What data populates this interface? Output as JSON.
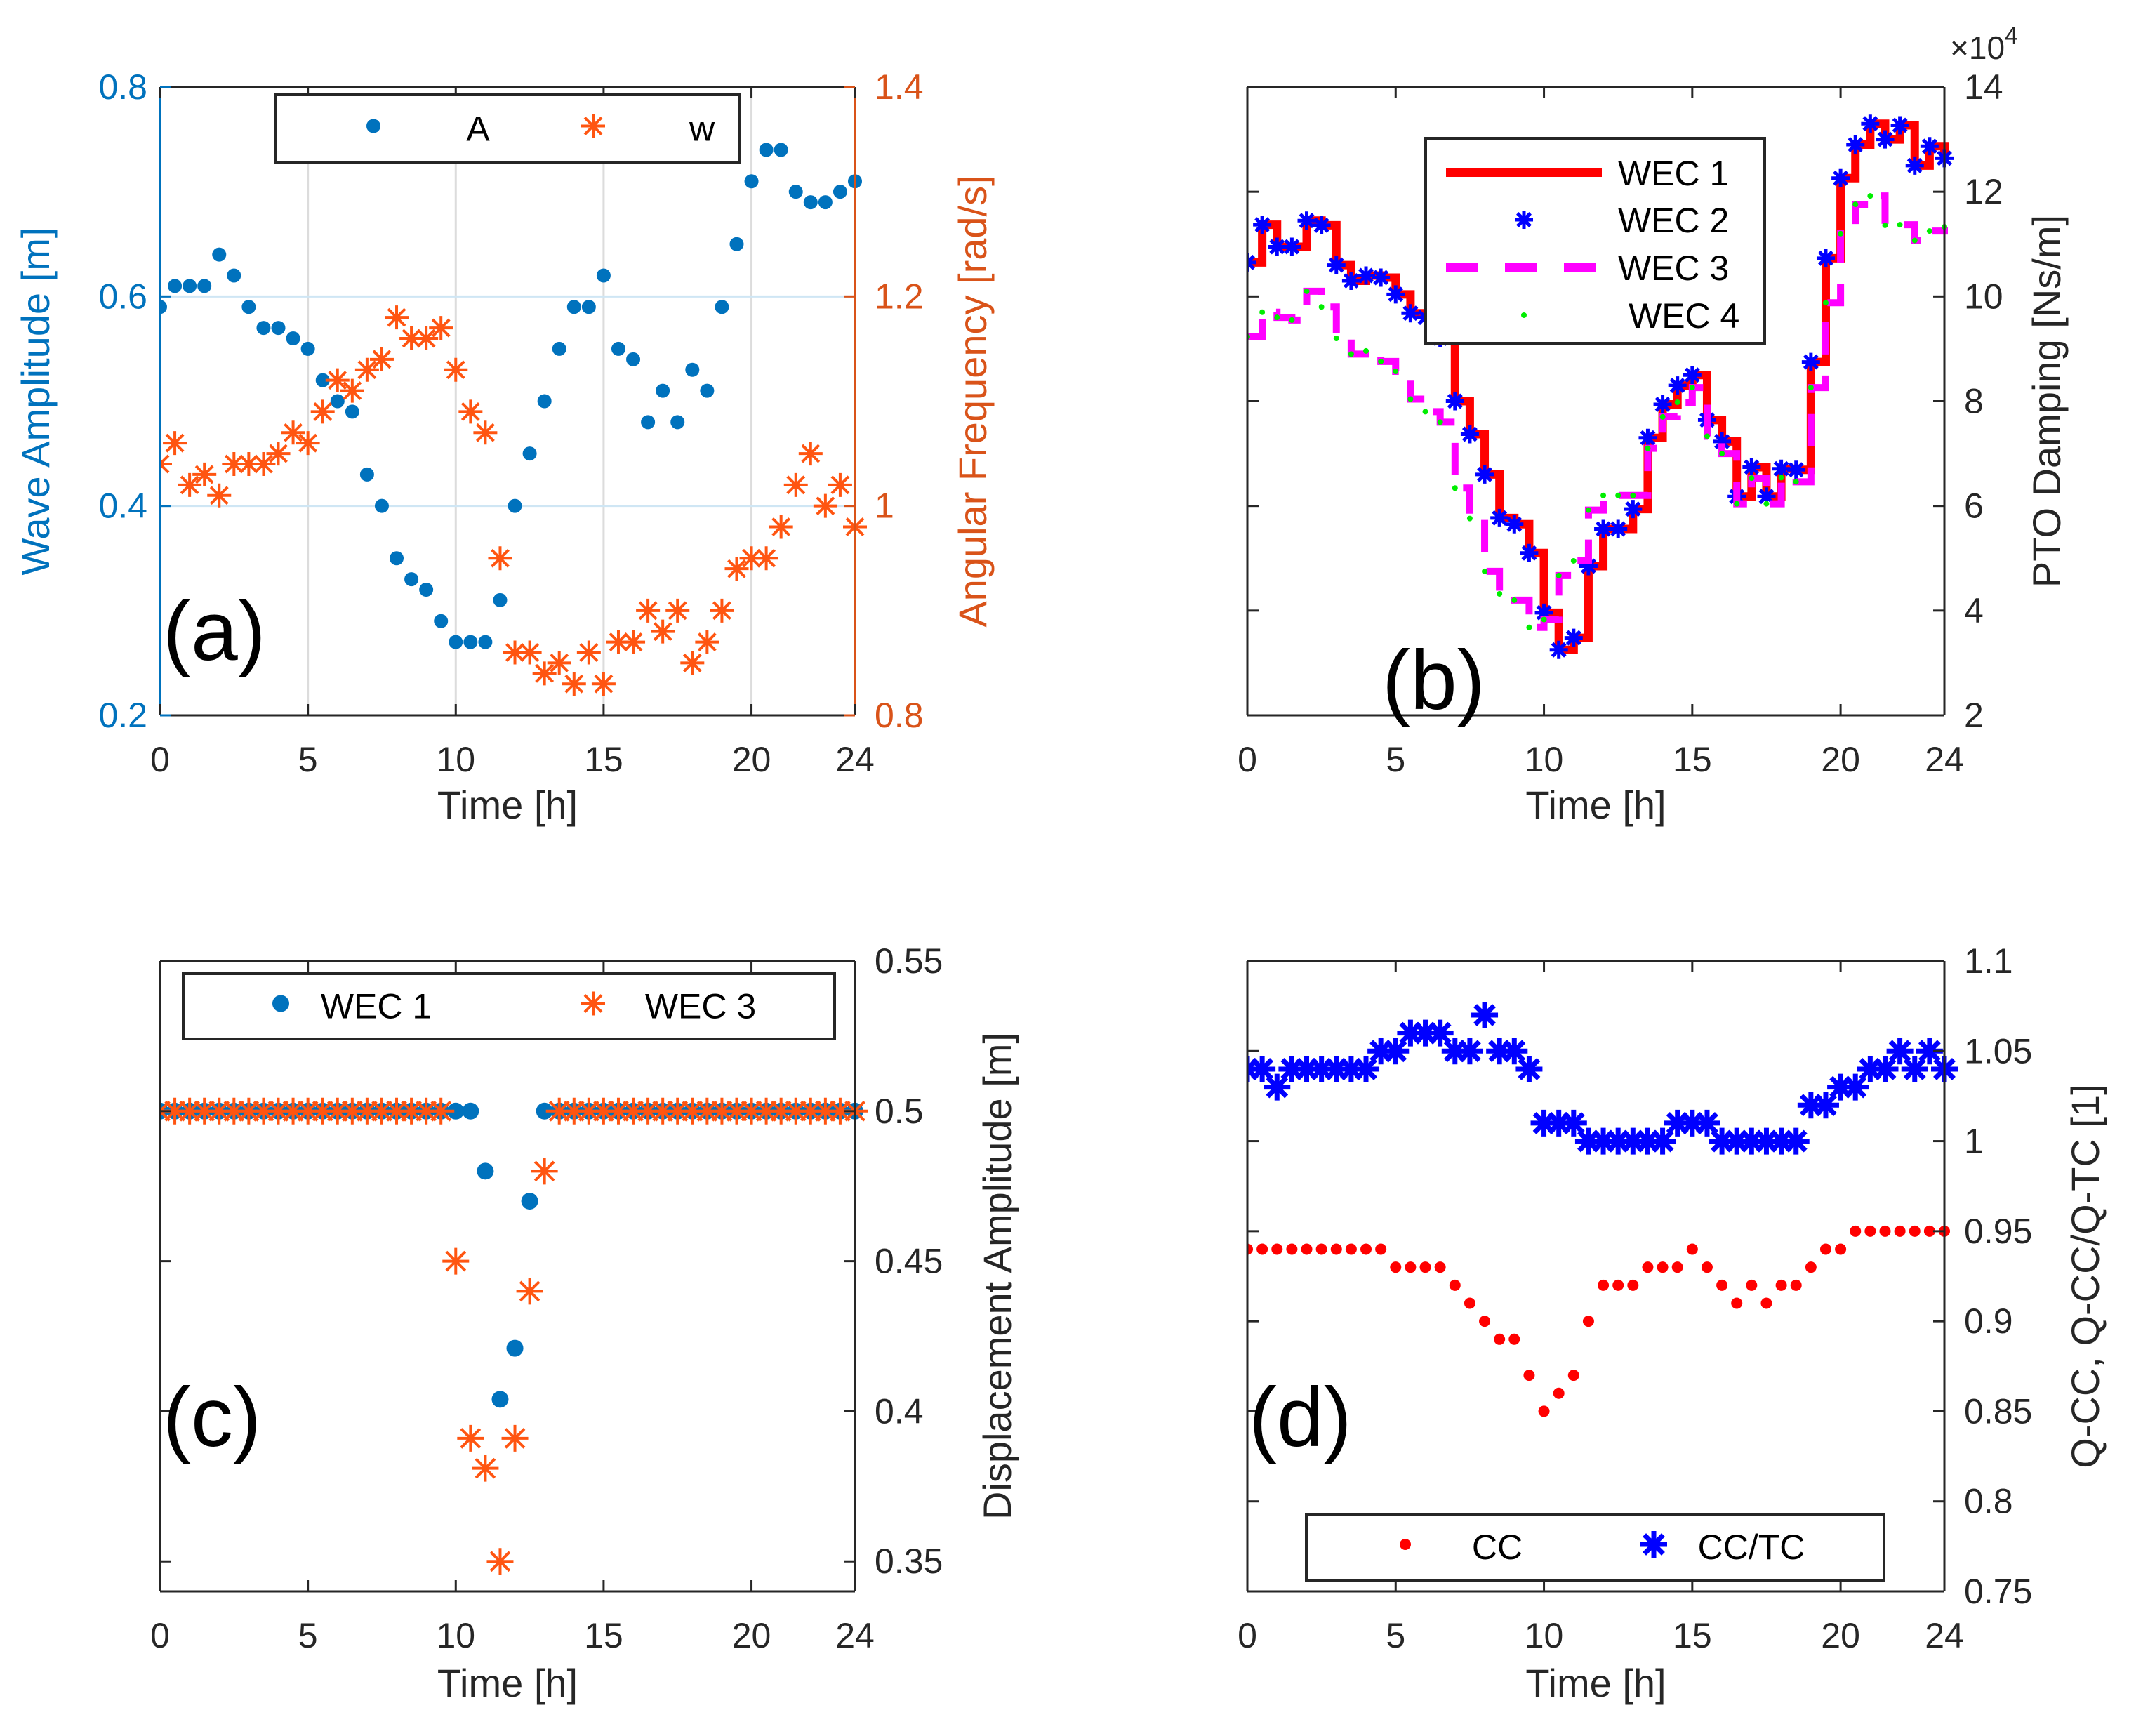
{
  "chart_data": [
    {
      "panel_label": "(a)",
      "type": "scatter",
      "xlabel": "Time [h]",
      "ylabel": "Wave Amplitude [m]",
      "y2label": "Angular Frequency [rad/s]",
      "xlim": [
        0,
        23.5
      ],
      "xticks": [
        0,
        5,
        10,
        15,
        20,
        23.5
      ],
      "xtick_labels": [
        "0",
        "5",
        "10",
        "15",
        "20",
        "24"
      ],
      "ylim": [
        0.2,
        0.8
      ],
      "yticks": [
        0.2,
        0.4,
        0.6,
        0.8
      ],
      "ytick_labels": [
        "0.2",
        "0.4",
        "0.6",
        "0.8"
      ],
      "y2lim": [
        0.8,
        1.4
      ],
      "y2ticks": [
        0.8,
        1.0,
        1.2,
        1.4
      ],
      "y2tick_labels": [
        "0.8",
        "1",
        "1.2",
        "1.4"
      ],
      "grid": true,
      "legend_position": "top",
      "x": [
        0,
        0.5,
        1,
        1.5,
        2,
        2.5,
        3,
        3.5,
        4,
        4.5,
        5,
        5.5,
        6,
        6.5,
        7,
        7.5,
        8,
        8.5,
        9,
        9.5,
        10,
        10.5,
        11,
        11.5,
        12,
        12.5,
        13,
        13.5,
        14,
        14.5,
        15,
        15.5,
        16,
        16.5,
        17,
        17.5,
        18,
        18.5,
        19,
        19.5,
        20,
        20.5,
        21,
        21.5,
        22,
        22.5,
        23,
        23.5
      ],
      "series": [
        {
          "name": "A",
          "axis": "left",
          "marker": "dot",
          "color": "#0072BD",
          "values": [
            0.59,
            0.61,
            0.61,
            0.61,
            0.64,
            0.62,
            0.59,
            0.57,
            0.57,
            0.56,
            0.55,
            0.52,
            0.5,
            0.49,
            0.43,
            0.4,
            0.35,
            0.33,
            0.32,
            0.29,
            0.27,
            0.27,
            0.27,
            0.31,
            0.4,
            0.45,
            0.5,
            0.55,
            0.59,
            0.59,
            0.62,
            0.55,
            0.54,
            0.48,
            0.51,
            0.48,
            0.53,
            0.51,
            0.59,
            0.65,
            0.71,
            0.74,
            0.74,
            0.7,
            0.69,
            0.69,
            0.7,
            0.71
          ]
        },
        {
          "name": "w",
          "axis": "right",
          "marker": "star",
          "color": "#FF5511",
          "values": [
            1.04,
            1.06,
            1.02,
            1.03,
            1.01,
            1.04,
            1.04,
            1.04,
            1.05,
            1.07,
            1.06,
            1.09,
            1.12,
            1.11,
            1.13,
            1.14,
            1.18,
            1.16,
            1.16,
            1.17,
            1.13,
            1.09,
            1.07,
            0.95,
            0.86,
            0.86,
            0.84,
            0.85,
            0.83,
            0.86,
            0.83,
            0.87,
            0.87,
            0.9,
            0.88,
            0.9,
            0.85,
            0.87,
            0.9,
            0.94,
            0.95,
            0.95,
            0.98,
            1.02,
            1.05,
            1.0,
            1.02,
            0.98
          ]
        }
      ]
    },
    {
      "panel_label": "(b)",
      "type": "line",
      "xlabel": "Time [h]",
      "ylabel": "PTO Damping [Ns/m]",
      "y_exponent_base": "×10",
      "y_exponent_power": "4",
      "xlim": [
        0,
        23.5
      ],
      "xticks": [
        0,
        5,
        10,
        15,
        20,
        23.5
      ],
      "xtick_labels": [
        "0",
        "5",
        "10",
        "15",
        "20",
        "24"
      ],
      "ylim": [
        2,
        14
      ],
      "yticks": [
        2,
        4,
        6,
        8,
        10,
        12,
        14
      ],
      "ytick_labels": [
        "2",
        "4",
        "6",
        "8",
        "10",
        "12",
        "14"
      ],
      "grid": false,
      "legend_position": "top-center",
      "x": [
        0,
        0.5,
        1,
        1.5,
        2,
        2.5,
        3,
        3.5,
        4,
        4.5,
        5,
        5.5,
        6,
        6.5,
        7,
        7.5,
        8,
        8.5,
        9,
        9.5,
        10,
        10.5,
        11,
        11.5,
        12,
        12.5,
        13,
        13.5,
        14,
        14.5,
        15,
        15.5,
        16,
        16.5,
        17,
        17.5,
        18,
        18.5,
        19,
        19.5,
        20,
        20.5,
        21,
        21.5,
        22,
        22.5,
        23,
        23.5
      ],
      "series": [
        {
          "name": "WEC 1",
          "style": "stairs-solid",
          "color": "#FF0000",
          "values": [
            10.65,
            11.37,
            10.95,
            10.95,
            11.45,
            11.36,
            10.6,
            10.3,
            10.4,
            10.36,
            10.04,
            9.68,
            9.6,
            9.2,
            8.0,
            7.37,
            6.6,
            5.77,
            5.65,
            5.1,
            3.96,
            3.25,
            3.48,
            4.85,
            5.56,
            5.56,
            5.94,
            7.3,
            7.94,
            8.3,
            8.5,
            7.64,
            7.23,
            6.18,
            6.74,
            6.18,
            6.71,
            6.69,
            8.75,
            10.73,
            12.26,
            12.9,
            13.3,
            13.0,
            13.27,
            12.5,
            12.87,
            12.64
          ]
        },
        {
          "name": "WEC 2",
          "style": "star",
          "color": "#0000FF",
          "values": [
            10.65,
            11.37,
            10.95,
            10.95,
            11.45,
            11.36,
            10.6,
            10.3,
            10.4,
            10.36,
            10.04,
            9.68,
            9.6,
            9.2,
            8.0,
            7.37,
            6.6,
            5.77,
            5.65,
            5.1,
            3.96,
            3.25,
            3.48,
            4.85,
            5.56,
            5.56,
            5.94,
            7.3,
            7.94,
            8.3,
            8.5,
            7.64,
            7.23,
            6.18,
            6.74,
            6.18,
            6.71,
            6.69,
            8.75,
            10.73,
            12.26,
            12.9,
            13.3,
            13.0,
            13.27,
            12.5,
            12.87,
            12.64
          ]
        },
        {
          "name": "WEC 3",
          "style": "stairs-dashed",
          "color": "#FF00FF",
          "values": [
            9.23,
            9.7,
            9.6,
            9.55,
            10.1,
            9.8,
            9.2,
            8.9,
            8.96,
            8.76,
            8.57,
            8.04,
            7.8,
            7.6,
            6.34,
            5.76,
            4.75,
            4.32,
            4.2,
            3.68,
            3.83,
            4.67,
            4.95,
            5.92,
            6.2,
            6.2,
            6.2,
            7.1,
            7.7,
            7.98,
            8.26,
            7.33,
            7.0,
            6.04,
            6.53,
            6.04,
            6.54,
            6.46,
            8.26,
            9.88,
            11.2,
            11.76,
            11.92,
            11.36,
            11.37,
            11.07,
            11.25,
            11.33
          ]
        },
        {
          "name": "WEC 4",
          "style": "dot",
          "color": "#00EE00",
          "values": [
            9.23,
            9.7,
            9.6,
            9.55,
            10.1,
            9.8,
            9.2,
            8.9,
            8.96,
            8.76,
            8.57,
            8.04,
            7.8,
            7.6,
            6.34,
            5.76,
            4.75,
            4.32,
            4.2,
            3.68,
            3.83,
            4.67,
            4.95,
            5.92,
            6.2,
            6.2,
            6.2,
            7.1,
            7.7,
            7.98,
            8.26,
            7.33,
            7.0,
            6.04,
            6.53,
            6.04,
            6.54,
            6.46,
            8.26,
            9.88,
            11.2,
            11.76,
            11.92,
            11.36,
            11.37,
            11.07,
            11.25,
            11.33
          ]
        }
      ]
    },
    {
      "panel_label": "(c)",
      "type": "scatter",
      "xlabel": "Time [h]",
      "ylabel": "Displacement Amplitude [m]",
      "xlim": [
        0,
        23.5
      ],
      "xticks": [
        0,
        5,
        10,
        15,
        20,
        23.5
      ],
      "xtick_labels": [
        "0",
        "5",
        "10",
        "15",
        "20",
        "24"
      ],
      "ylim": [
        0.34,
        0.55
      ],
      "yticks": [
        0.35,
        0.4,
        0.45,
        0.5,
        0.55
      ],
      "ytick_labels": [
        "0.35",
        "0.4",
        "0.45",
        "0.5",
        "0.55"
      ],
      "grid": false,
      "legend_position": "top",
      "x": [
        0,
        0.5,
        1,
        1.5,
        2,
        2.5,
        3,
        3.5,
        4,
        4.5,
        5,
        5.5,
        6,
        6.5,
        7,
        7.5,
        8,
        8.5,
        9,
        9.5,
        10,
        10.5,
        11,
        11.5,
        12,
        12.5,
        13,
        13.5,
        14,
        14.5,
        15,
        15.5,
        16,
        16.5,
        17,
        17.5,
        18,
        18.5,
        19,
        19.5,
        20,
        20.5,
        21,
        21.5,
        22,
        22.5,
        23,
        23.5
      ],
      "series": [
        {
          "name": "WEC 1",
          "marker": "dot",
          "color": "#0072BD",
          "values": [
            0.5,
            0.5,
            0.5,
            0.5,
            0.5,
            0.5,
            0.5,
            0.5,
            0.5,
            0.5,
            0.5,
            0.5,
            0.5,
            0.5,
            0.5,
            0.5,
            0.5,
            0.5,
            0.5,
            0.5,
            0.5,
            0.5,
            0.48,
            0.404,
            0.421,
            0.47,
            0.5,
            0.5,
            0.5,
            0.5,
            0.5,
            0.5,
            0.5,
            0.5,
            0.5,
            0.5,
            0.5,
            0.5,
            0.5,
            0.5,
            0.5,
            0.5,
            0.5,
            0.5,
            0.5,
            0.5,
            0.5,
            0.5
          ]
        },
        {
          "name": "WEC 3",
          "marker": "star",
          "color": "#FF5511",
          "values": [
            0.5,
            0.5,
            0.5,
            0.5,
            0.5,
            0.5,
            0.5,
            0.5,
            0.5,
            0.5,
            0.5,
            0.5,
            0.5,
            0.5,
            0.5,
            0.5,
            0.5,
            0.5,
            0.5,
            0.5,
            0.45,
            0.391,
            0.381,
            0.35,
            0.391,
            0.44,
            0.48,
            0.5,
            0.5,
            0.5,
            0.5,
            0.5,
            0.5,
            0.5,
            0.5,
            0.5,
            0.5,
            0.5,
            0.5,
            0.5,
            0.5,
            0.5,
            0.5,
            0.5,
            0.5,
            0.5,
            0.5,
            0.5
          ]
        }
      ]
    },
    {
      "panel_label": "(d)",
      "type": "scatter",
      "xlabel": "Time [h]",
      "ylabel": "Q-CC, Q-CC/Q-TC [1]",
      "xlim": [
        0,
        23.5
      ],
      "xticks": [
        0,
        5,
        10,
        15,
        20,
        23.5
      ],
      "xtick_labels": [
        "0",
        "5",
        "10",
        "15",
        "20",
        "24"
      ],
      "ylim": [
        0.75,
        1.1
      ],
      "yticks": [
        0.75,
        0.8,
        0.85,
        0.9,
        0.95,
        1.0,
        1.05,
        1.1
      ],
      "ytick_labels": [
        "0.75",
        "0.8",
        "0.85",
        "0.9",
        "0.95",
        "1",
        "1.05",
        "1.1"
      ],
      "grid": false,
      "legend_position": "bottom",
      "x": [
        0,
        0.5,
        1,
        1.5,
        2,
        2.5,
        3,
        3.5,
        4,
        4.5,
        5,
        5.5,
        6,
        6.5,
        7,
        7.5,
        8,
        8.5,
        9,
        9.5,
        10,
        10.5,
        11,
        11.5,
        12,
        12.5,
        13,
        13.5,
        14,
        14.5,
        15,
        15.5,
        16,
        16.5,
        17,
        17.5,
        18,
        18.5,
        19,
        19.5,
        20,
        20.5,
        21,
        21.5,
        22,
        22.5,
        23,
        23.5
      ],
      "series": [
        {
          "name": "CC",
          "marker": "dot",
          "color": "#FF0000",
          "values": [
            0.94,
            0.94,
            0.94,
            0.94,
            0.94,
            0.94,
            0.94,
            0.94,
            0.94,
            0.94,
            0.93,
            0.93,
            0.93,
            0.93,
            0.92,
            0.91,
            0.9,
            0.89,
            0.89,
            0.87,
            0.85,
            0.86,
            0.87,
            0.9,
            0.92,
            0.92,
            0.92,
            0.93,
            0.93,
            0.93,
            0.94,
            0.93,
            0.92,
            0.91,
            0.92,
            0.91,
            0.92,
            0.92,
            0.93,
            0.94,
            0.94,
            0.95,
            0.95,
            0.95,
            0.95,
            0.95,
            0.95,
            0.95
          ]
        },
        {
          "name": "CC/TC",
          "marker": "star",
          "color": "#0000FF",
          "values": [
            1.04,
            1.04,
            1.03,
            1.04,
            1.04,
            1.04,
            1.04,
            1.04,
            1.04,
            1.05,
            1.05,
            1.06,
            1.06,
            1.06,
            1.05,
            1.05,
            1.07,
            1.05,
            1.05,
            1.04,
            1.01,
            1.01,
            1.01,
            1.0,
            1.0,
            1.0,
            1.0,
            1.0,
            1.0,
            1.01,
            1.01,
            1.01,
            1.0,
            1.0,
            1.0,
            1.0,
            1.0,
            1.0,
            1.02,
            1.02,
            1.03,
            1.03,
            1.04,
            1.04,
            1.05,
            1.04,
            1.05,
            1.04
          ]
        }
      ]
    }
  ]
}
